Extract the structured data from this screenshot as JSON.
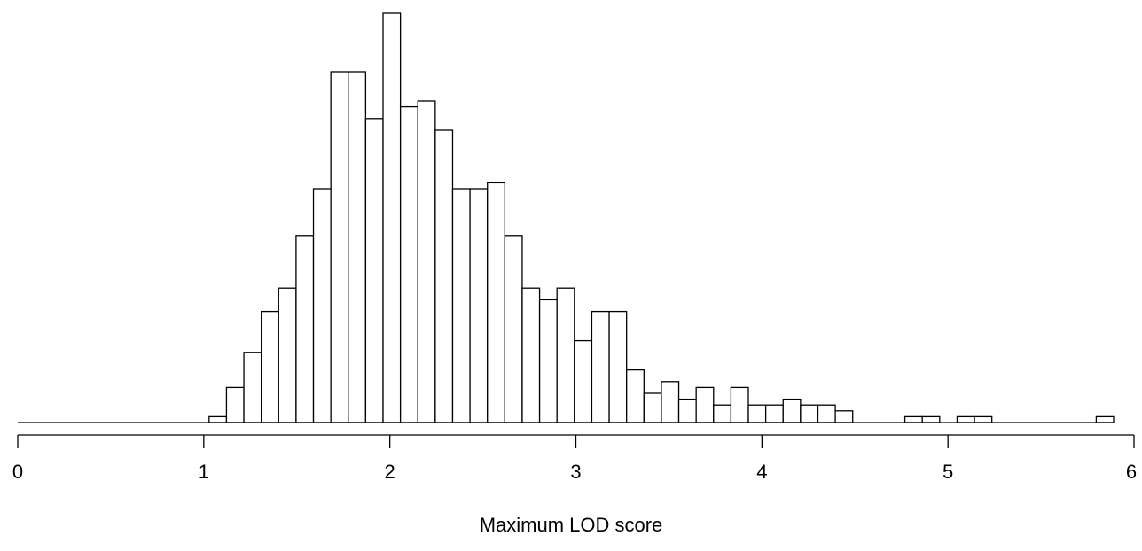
{
  "chart_data": {
    "type": "bar",
    "title": "",
    "xlabel": "Maximum LOD score",
    "ylabel": "",
    "xlim": [
      0,
      6
    ],
    "xticks": [
      "0",
      "1",
      "2",
      "3",
      "4",
      "5",
      "6"
    ],
    "y_axis_shown": false,
    "grid": false,
    "bin_width": 0.0935,
    "bin_start": 0,
    "counts": [
      0,
      0,
      0,
      0,
      0,
      0,
      0,
      0,
      0,
      0,
      0,
      1,
      6,
      12,
      19,
      23,
      32,
      40,
      60,
      60,
      52,
      70,
      54,
      55,
      50,
      40,
      40,
      41,
      32,
      23,
      21,
      23,
      14,
      19,
      19,
      9,
      5,
      7,
      4,
      6,
      3,
      6,
      3,
      3,
      4,
      3,
      3,
      2,
      0,
      0,
      0,
      1,
      1,
      0,
      1,
      1,
      0,
      0,
      0,
      0,
      0,
      0,
      1
    ],
    "ylim": [
      0,
      70
    ]
  }
}
